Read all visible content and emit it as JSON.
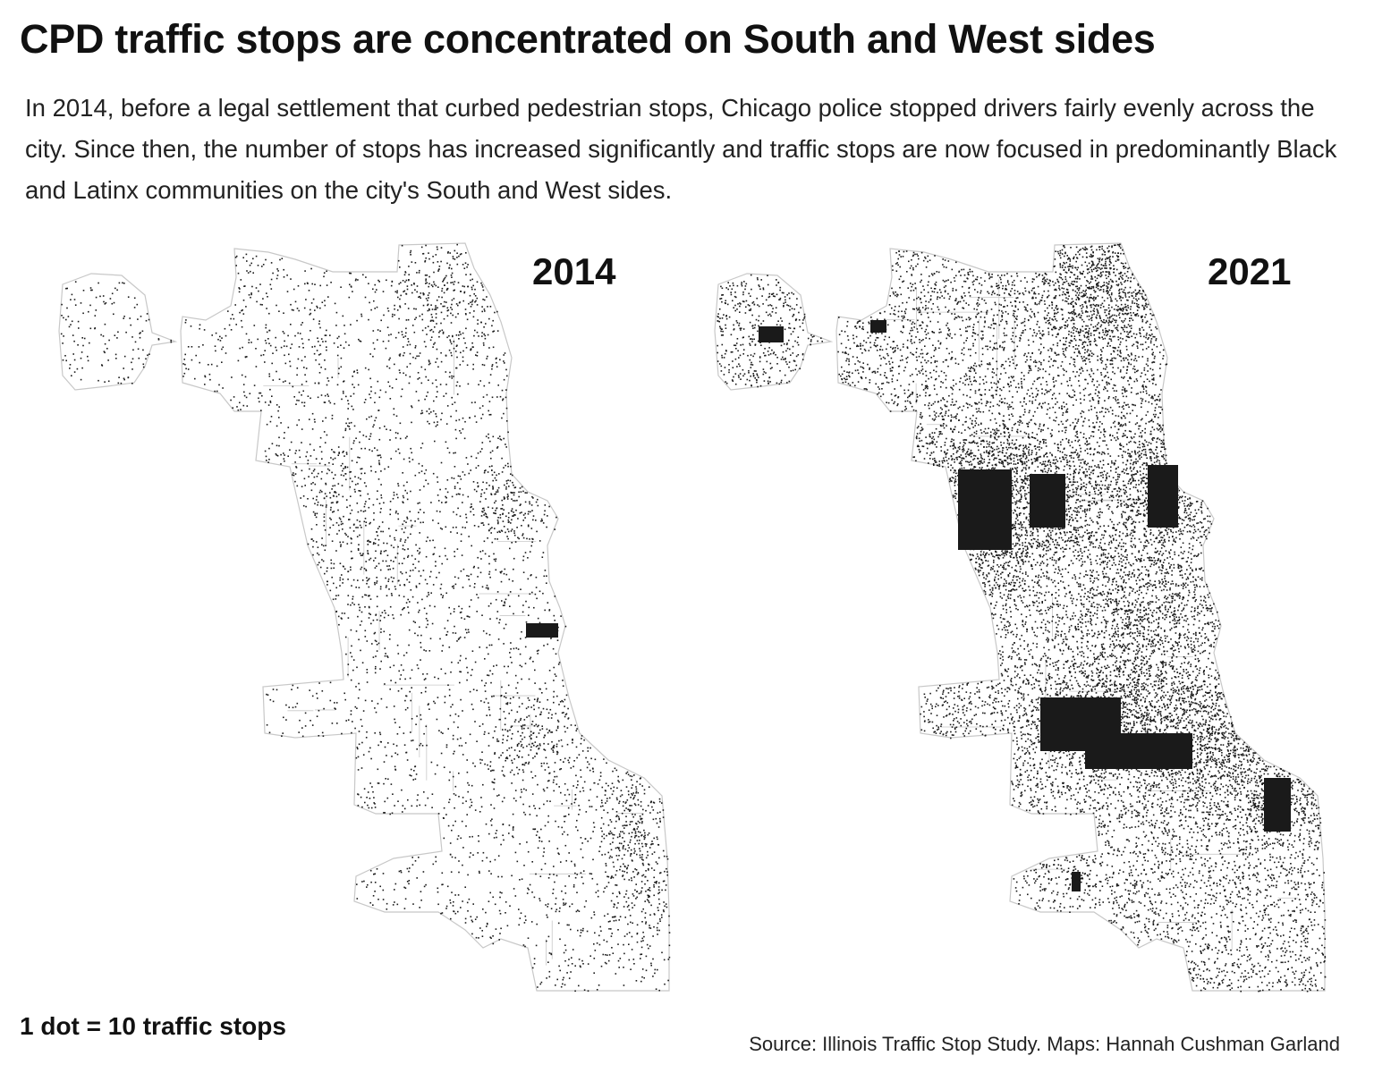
{
  "title": "CPD traffic stops are concentrated on South and West sides",
  "subtitle": "In 2014, before a legal settlement that curbed pedestrian stops, Chicago police stopped drivers fairly evenly across the city. Since then, the number of stops has increased significantly and traffic stops are now focused in predominantly Black and Latinx communities on the city's South and West sides.",
  "maps": [
    {
      "year": "2014"
    },
    {
      "year": "2021"
    }
  ],
  "legend": "1 dot = 10 traffic stops",
  "source": "Source: Illinois Traffic Stop Study. Maps: Hannah Cushman Garland",
  "colors": {
    "dot": "#1a1a1a",
    "boundary": "#c8c8c8",
    "background": "#ffffff"
  }
}
